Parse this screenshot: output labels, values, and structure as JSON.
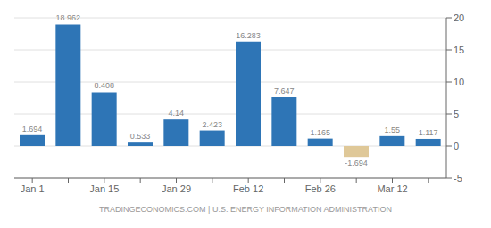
{
  "chart_data": {
    "type": "bar",
    "categories": [
      "Jan 1",
      null,
      "Jan 15",
      null,
      "Jan 29",
      null,
      "Feb 12",
      null,
      "Feb 26",
      null,
      "Mar 12",
      null
    ],
    "values": [
      1.694,
      18.962,
      8.408,
      0.533,
      4.14,
      2.423,
      16.283,
      7.647,
      1.165,
      -1.694,
      1.55,
      1.117
    ],
    "colors": [
      "#2e75b6",
      "#2e75b6",
      "#2e75b6",
      "#2e75b6",
      "#2e75b6",
      "#2e75b6",
      "#2e75b6",
      "#2e75b6",
      "#2e75b6",
      "#dfc898",
      "#2e75b6",
      "#2e75b6"
    ],
    "ylim": [
      -5,
      20
    ],
    "yticks": [
      -5,
      0,
      5,
      10,
      15,
      20
    ],
    "grid": true,
    "data_labels": true,
    "annotations": [
      "TRADINGECONOMICS.COM | U.S. ENERGY INFORMATION ADMINISTRATION"
    ]
  }
}
